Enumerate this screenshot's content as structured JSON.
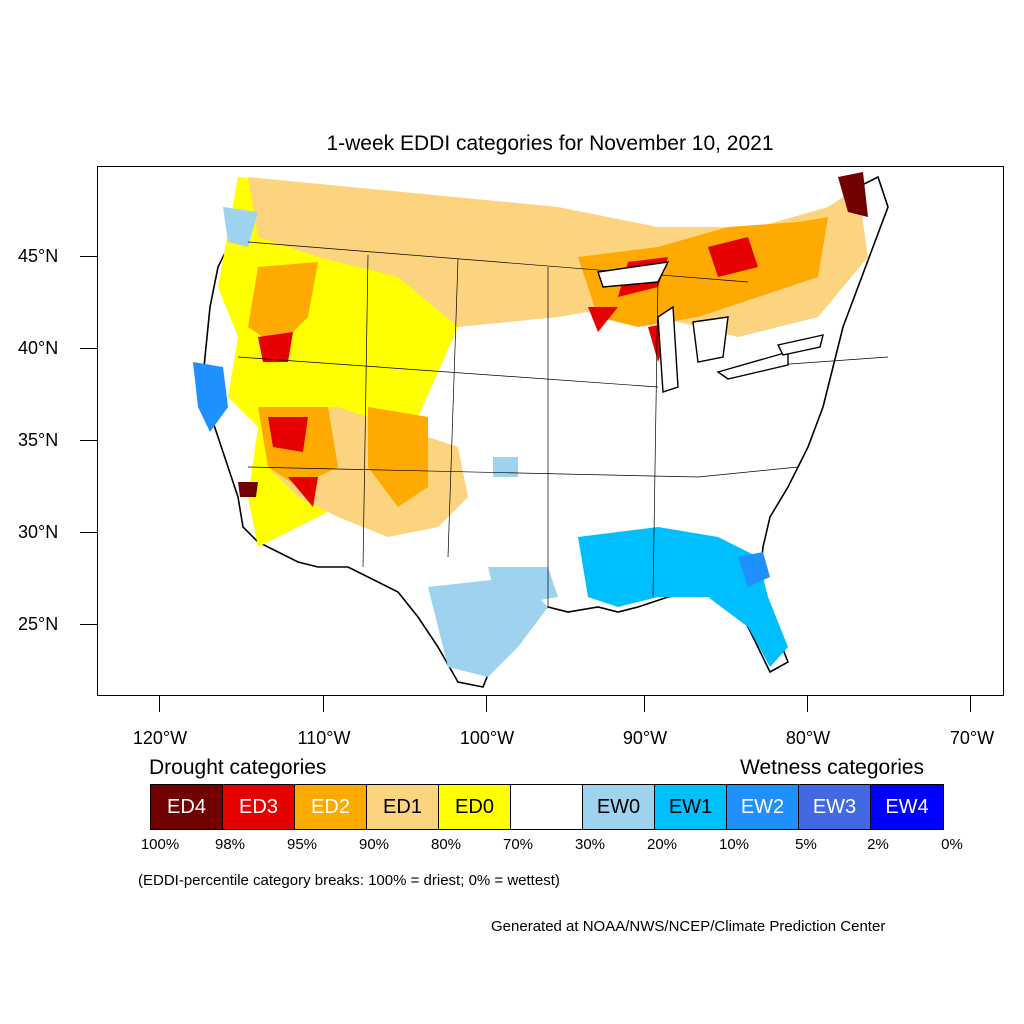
{
  "title": "1-week EDDI categories for November 10, 2021",
  "axes": {
    "lat_labels": [
      "45°N",
      "40°N",
      "35°N",
      "30°N",
      "25°N"
    ],
    "lon_labels": [
      "120°W",
      "110°W",
      "100°W",
      "90°W",
      "80°W",
      "70°W"
    ]
  },
  "legend": {
    "drought_heading": "Drought categories",
    "wetness_heading": "Wetness categories",
    "categories": [
      {
        "label": "ED4",
        "color": "#730000",
        "text_color": "#ffffff"
      },
      {
        "label": "ED3",
        "color": "#e60000",
        "text_color": "#ffffff"
      },
      {
        "label": "ED2",
        "color": "#ffaa00",
        "text_color": "#ffffff"
      },
      {
        "label": "ED1",
        "color": "#fcd37f",
        "text_color": "#000000"
      },
      {
        "label": "ED0",
        "color": "#ffff00",
        "text_color": "#000000"
      },
      {
        "label": "",
        "color": "#ffffff",
        "text_color": "#000000"
      },
      {
        "label": "EW0",
        "color": "#9ed2ef",
        "text_color": "#000000"
      },
      {
        "label": "EW1",
        "color": "#00bfff",
        "text_color": "#000000"
      },
      {
        "label": "EW2",
        "color": "#1e90ff",
        "text_color": "#ffffff"
      },
      {
        "label": "EW3",
        "color": "#4169e1",
        "text_color": "#ffffff"
      },
      {
        "label": "EW4",
        "color": "#0000ff",
        "text_color": "#ffffff"
      }
    ],
    "breaks": [
      "100%",
      "98%",
      "95%",
      "90%",
      "80%",
      "70%",
      "30%",
      "20%",
      "10%",
      "5%",
      "2%",
      "0%"
    ]
  },
  "note": "(EDDI-percentile category breaks: 100% = driest; 0% = wettest)",
  "credit": "Generated at NOAA/NWS/NCEP/Climate Prediction Center"
}
